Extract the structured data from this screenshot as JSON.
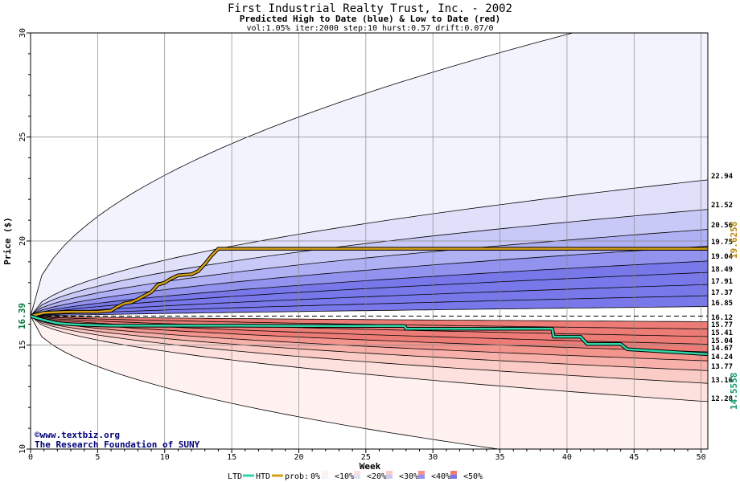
{
  "title": "First Industrial Realty Trust, Inc. - 2002",
  "subtitle": "Predicted High to Date (blue) &  Low to Date (red)",
  "params": "vol:1.05% iter:2000 step:10 hurst:0.57 drift:0.07/0",
  "credit": {
    "line1": "©www.textbiz.org",
    "line2": "The Research Foundation of SUNY"
  },
  "legend": {
    "ltd": "LTD",
    "htd": "HTD",
    "prob_prefix": "prob:",
    "items": [
      "0%",
      "<10%",
      "<20%",
      "<30%",
      "<40%",
      "<50%"
    ]
  },
  "colors": {
    "htd_line": "#d4a017",
    "ltd_line": "#2fd6a8",
    "current_price_label": "#007a3d",
    "htd_final_label": "#b8860b",
    "ltd_final_label": "#0c9a6e",
    "blue_bands": [
      "#f3f3fd",
      "#e0e0fb",
      "#c9c9f7",
      "#b0b0f4",
      "#9292ef",
      "#7878ea"
    ],
    "red_bands": [
      "#fff1ef",
      "#fde1de",
      "#fbcbc6",
      "#f8b0aa",
      "#f3948d",
      "#ee7c76"
    ]
  },
  "chart_data": {
    "type": "area",
    "title": "First Industrial Realty Trust, Inc. - 2002",
    "xlabel": "Week",
    "ylabel": "Price ($)",
    "xlim": [
      0,
      50
    ],
    "ylim": [
      10,
      30
    ],
    "x_ticks": [
      0,
      5,
      10,
      15,
      20,
      25,
      30,
      35,
      40,
      45,
      50
    ],
    "y_ticks": [
      10,
      15,
      20,
      25,
      30
    ],
    "grid": true,
    "start_price": 16.39,
    "start_price_label": "16.39",
    "percentile_levels": {
      "high": [
        "22.94",
        "21.52",
        "20.56",
        "19.75",
        "19.04",
        "18.49",
        "17.91",
        "17.37",
        "16.85"
      ],
      "low": [
        "16.12",
        "15.77",
        "15.41",
        "15.04",
        "14.67",
        "14.24",
        "13.77",
        "13.16",
        "12.28"
      ]
    },
    "high_curves": [
      {
        "end": 31.6,
        "k": 0.5
      },
      {
        "end": 22.94,
        "k": 0.55
      },
      {
        "end": 21.52,
        "k": 0.55
      },
      {
        "end": 20.56,
        "k": 0.57
      },
      {
        "end": 19.75,
        "k": 0.6
      },
      {
        "end": 19.04,
        "k": 0.63
      },
      {
        "end": 18.49,
        "k": 0.66
      },
      {
        "end": 17.91,
        "k": 0.7
      },
      {
        "end": 17.37,
        "k": 0.75
      },
      {
        "end": 16.85,
        "k": 0.8
      }
    ],
    "low_curves": [
      {
        "end": 16.12,
        "k": 0.7
      },
      {
        "end": 15.77,
        "k": 0.65
      },
      {
        "end": 15.41,
        "k": 0.62
      },
      {
        "end": 15.04,
        "k": 0.6
      },
      {
        "end": 14.67,
        "k": 0.58
      },
      {
        "end": 14.24,
        "k": 0.56
      },
      {
        "end": 13.77,
        "k": 0.55
      },
      {
        "end": 13.16,
        "k": 0.55
      },
      {
        "end": 12.28,
        "k": 0.55
      },
      {
        "end": 8.7,
        "k": 0.5
      }
    ],
    "series": [
      {
        "name": "HTD",
        "final_label": "19.6258",
        "x": [
          0,
          1,
          2,
          3,
          4,
          5,
          6,
          6.5,
          7,
          7.5,
          8,
          9,
          9.5,
          10,
          10.5,
          11,
          12,
          12.5,
          13,
          13.5,
          14,
          14.5,
          20,
          25,
          30,
          35,
          40,
          45,
          50.5
        ],
        "y": [
          16.39,
          16.55,
          16.58,
          16.6,
          16.6,
          16.6,
          16.65,
          16.85,
          17.0,
          17.05,
          17.2,
          17.55,
          17.9,
          18.0,
          18.2,
          18.35,
          18.4,
          18.55,
          18.9,
          19.3,
          19.63,
          19.63,
          19.63,
          19.63,
          19.63,
          19.63,
          19.63,
          19.63,
          19.63
        ]
      },
      {
        "name": "LTD",
        "final_label": "14.5558",
        "x": [
          0,
          1,
          2,
          3,
          4,
          5,
          6,
          10,
          15,
          20,
          27.9,
          28,
          38.9,
          39,
          41,
          41.5,
          44,
          44.5,
          50.5
        ],
        "y": [
          16.39,
          16.2,
          16.05,
          16.0,
          15.97,
          15.95,
          15.93,
          15.93,
          15.93,
          15.92,
          15.92,
          15.78,
          15.78,
          15.4,
          15.4,
          15.05,
          15.05,
          14.8,
          14.56
        ]
      }
    ]
  }
}
